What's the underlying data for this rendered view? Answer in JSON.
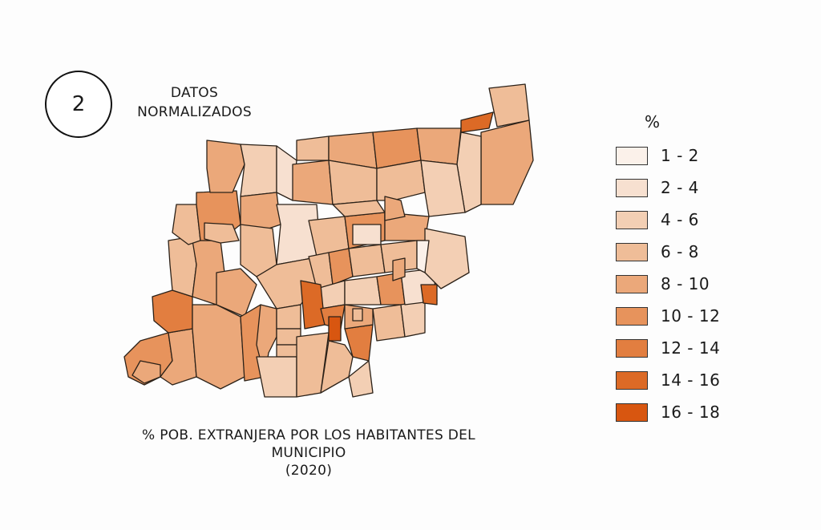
{
  "badge": {
    "number": "2"
  },
  "subtitle": {
    "line1": "DATOS",
    "line2": "NORMALIZADOS"
  },
  "caption": {
    "line1": "% POB. EXTRANJERA POR LOS HABITANTES DEL",
    "line2": "MUNICIPIO",
    "line3": "(2020)"
  },
  "legend": {
    "title": "%",
    "items": [
      {
        "label": "1 - 2",
        "color": "#fbf1ea"
      },
      {
        "label": "2 - 4",
        "color": "#f7e0d0"
      },
      {
        "label": "4 - 6",
        "color": "#f3cfb4"
      },
      {
        "label": "6 - 8",
        "color": "#efbd98"
      },
      {
        "label": "8 - 10",
        "color": "#eba87a"
      },
      {
        "label": "10 - 12",
        "color": "#e7935c"
      },
      {
        "label": "12 - 14",
        "color": "#e27e40"
      },
      {
        "label": "14 - 16",
        "color": "#dc6a26"
      },
      {
        "label": "16 - 18",
        "color": "#d85610"
      }
    ]
  },
  "map": {
    "outline_color": "#2b2118",
    "municipalities": [
      {
        "class_index": 5
      },
      {
        "class_index": 4
      },
      {
        "class_index": 4
      },
      {
        "class_index": 6
      },
      {
        "class_index": 3
      },
      {
        "class_index": 4
      },
      {
        "class_index": 4
      },
      {
        "class_index": 4
      },
      {
        "class_index": 5
      },
      {
        "class_index": 4
      },
      {
        "class_index": 3
      },
      {
        "class_index": 5
      },
      {
        "class_index": 3
      },
      {
        "class_index": 4
      },
      {
        "class_index": 2
      },
      {
        "class_index": 1
      },
      {
        "class_index": 4
      },
      {
        "class_index": 3
      },
      {
        "class_index": 1
      },
      {
        "class_index": 3
      },
      {
        "class_index": 4
      },
      {
        "class_index": 3
      },
      {
        "class_index": 4
      },
      {
        "class_index": 3
      },
      {
        "class_index": 5
      },
      {
        "class_index": 3
      },
      {
        "class_index": 4
      },
      {
        "class_index": 7
      },
      {
        "class_index": 3
      },
      {
        "class_index": 4
      },
      {
        "class_index": 2
      },
      {
        "class_index": 2
      },
      {
        "class_index": 3
      },
      {
        "class_index": 5
      },
      {
        "class_index": 3
      },
      {
        "class_index": 4
      },
      {
        "class_index": 3
      },
      {
        "class_index": 5
      },
      {
        "class_index": 3
      },
      {
        "class_index": 3
      },
      {
        "class_index": 1
      },
      {
        "class_index": 2
      },
      {
        "class_index": 2
      },
      {
        "class_index": 3
      },
      {
        "class_index": 7
      },
      {
        "class_index": 6
      },
      {
        "class_index": 8
      },
      {
        "class_index": 5
      },
      {
        "class_index": 6
      },
      {
        "class_index": 3
      },
      {
        "class_index": 2
      },
      {
        "class_index": 4
      },
      {
        "class_index": 3
      },
      {
        "class_index": 3
      },
      {
        "class_index": 2
      },
      {
        "class_index": 1
      },
      {
        "class_index": 2
      },
      {
        "class_index": 0
      },
      {
        "class_index": 7
      },
      {
        "class_index": 4
      },
      {
        "class_index": 3
      },
      {
        "class_index": 3
      },
      {
        "class_index": 2
      },
      {
        "class_index": 4
      },
      {
        "class_index": 3
      },
      {
        "class_index": 5
      },
      {
        "class_index": 4
      },
      {
        "class_index": 0
      },
      {
        "class_index": 0
      }
    ]
  }
}
